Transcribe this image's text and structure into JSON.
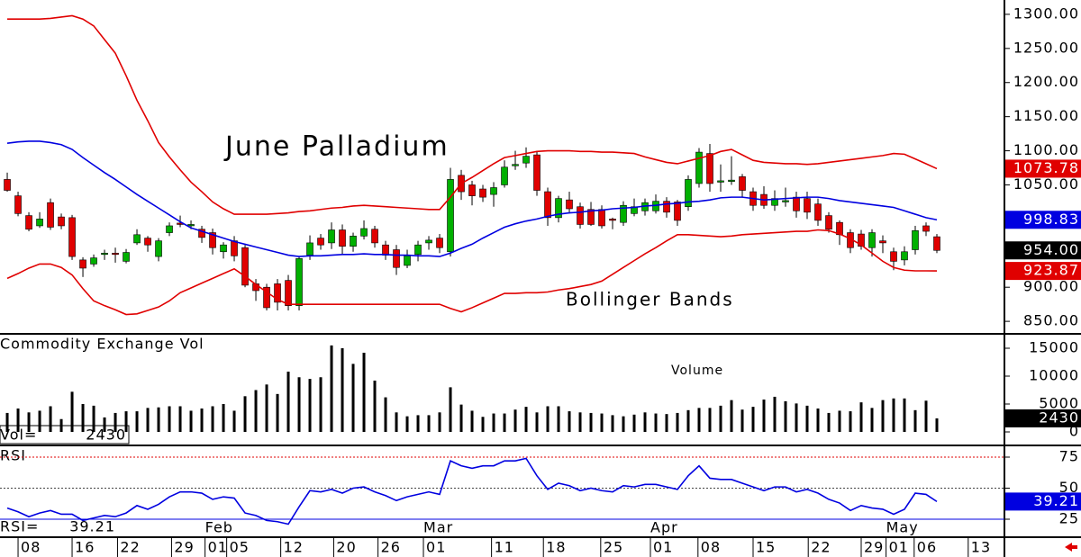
{
  "chart_data": [
    {
      "type": "candlestick",
      "title": "June Palladium",
      "annotation": "Bollinger Bands",
      "ylim": [
        833,
        1321
      ],
      "yticks": [
        {
          "value": 1300,
          "label": "1300.00"
        },
        {
          "value": 1250,
          "label": "1250.00"
        },
        {
          "value": 1200,
          "label": "1200.00"
        },
        {
          "value": 1150,
          "label": "1150.00"
        },
        {
          "value": 1100,
          "label": "1100.00"
        },
        {
          "value": 1050,
          "label": "1050.00"
        },
        {
          "value": 1000,
          "label": "1000.00"
        },
        {
          "value": 950,
          "label": "950.00"
        },
        {
          "value": 900,
          "label": "900.00"
        },
        {
          "value": 850,
          "label": "850.00"
        }
      ],
      "up_color": "#00b000",
      "down_color": "#e00000",
      "x": [
        0,
        1,
        2,
        3,
        4,
        5,
        6,
        7,
        8,
        9,
        10,
        11,
        12,
        13,
        14,
        15,
        16,
        17,
        18,
        19,
        20,
        21,
        22,
        23,
        24,
        25,
        26,
        27,
        28,
        29,
        30,
        31,
        32,
        33,
        34,
        35,
        36,
        37,
        38,
        39,
        40,
        41,
        42,
        43,
        44,
        45,
        46,
        47,
        48,
        49,
        50,
        51,
        52,
        53,
        54,
        55,
        56,
        57,
        58,
        59,
        60,
        61,
        62,
        63,
        64,
        65,
        66,
        67,
        68,
        69,
        70,
        71,
        72,
        73,
        74,
        75,
        76,
        77,
        78,
        79,
        80,
        81,
        82,
        83,
        84,
        85,
        86
      ],
      "open": [
        1058,
        1034,
        1005,
        990,
        1024,
        1003,
        1002,
        940,
        934,
        948,
        950,
        938,
        965,
        972,
        945,
        980,
        994,
        990,
        985,
        980,
        952,
        968,
        958,
        905,
        900,
        905,
        910,
        873,
        947,
        972,
        965,
        984,
        960,
        975,
        985,
        962,
        955,
        932,
        948,
        965,
        972,
        952,
        1064,
        1050,
        1044,
        1036,
        1050,
        1078,
        1082,
        1094,
        1040,
        1002,
        1028,
        1018,
        1014,
        1014,
        1000,
        995,
        1008,
        1012,
        1012,
        1026,
        1025,
        1018,
        1052,
        1096,
        1054,
        1055,
        1062,
        1040,
        1036,
        1020,
        1025,
        1032,
        1030,
        1022,
        1005,
        995,
        980,
        978,
        958,
        968,
        952,
        940,
        955,
        990,
        974
      ],
      "high": [
        1068,
        1040,
        1010,
        1010,
        1030,
        1008,
        1006,
        944,
        948,
        955,
        958,
        956,
        985,
        975,
        972,
        995,
        1005,
        998,
        990,
        986,
        966,
        975,
        962,
        912,
        905,
        912,
        918,
        945,
        976,
        978,
        995,
        992,
        980,
        998,
        990,
        968,
        962,
        955,
        968,
        975,
        978,
        1075,
        1072,
        1056,
        1050,
        1054,
        1086,
        1100,
        1105,
        1100,
        1046,
        1034,
        1040,
        1024,
        1025,
        1020,
        1002,
        1026,
        1030,
        1030,
        1036,
        1032,
        1028,
        1064,
        1104,
        1110,
        1080,
        1092,
        1066,
        1046,
        1048,
        1042,
        1046,
        1040,
        1040,
        1030,
        1010,
        998,
        985,
        984,
        985,
        976,
        958,
        960,
        990,
        995,
        978
      ],
      "low": [
        1040,
        1004,
        982,
        987,
        984,
        985,
        940,
        915,
        930,
        940,
        936,
        935,
        962,
        952,
        938,
        975,
        988,
        985,
        965,
        948,
        942,
        938,
        900,
        880,
        866,
        866,
        866,
        866,
        940,
        955,
        956,
        948,
        952,
        970,
        958,
        940,
        918,
        928,
        938,
        955,
        950,
        945,
        1028,
        1020,
        1025,
        1018,
        1046,
        1072,
        1075,
        1034,
        990,
        995,
        1008,
        986,
        990,
        986,
        985,
        990,
        1004,
        1005,
        1008,
        1002,
        990,
        1012,
        1046,
        1040,
        1040,
        1050,
        1032,
        1012,
        1015,
        1012,
        1018,
        1002,
        1000,
        990,
        980,
        962,
        950,
        955,
        945,
        950,
        925,
        932,
        948,
        975,
        950
      ],
      "close": [
        1042,
        1008,
        985,
        1000,
        988,
        990,
        945,
        928,
        943,
        950,
        948,
        951,
        977,
        962,
        968,
        990,
        992,
        992,
        973,
        958,
        962,
        946,
        903,
        895,
        870,
        878,
        873,
        942,
        965,
        962,
        984,
        960,
        975,
        986,
        965,
        947,
        929,
        946,
        962,
        969,
        958,
        1058,
        1040,
        1034,
        1032,
        1046,
        1076,
        1080,
        1092,
        1042,
        1002,
        1030,
        1015,
        992,
        992,
        990,
        998,
        1020,
        1018,
        1024,
        1026,
        1010,
        998,
        1058,
        1098,
        1052,
        1056,
        1057,
        1042,
        1020,
        1020,
        1030,
        1027,
        1012,
        1010,
        998,
        985,
        977,
        958,
        960,
        980,
        965,
        938,
        952,
        983,
        982,
        954
      ],
      "series": [
        {
          "color": "#e00000",
          "values": [
            1293,
            1293,
            1293,
            1293,
            1294,
            1296,
            1298,
            1293,
            1283,
            1263,
            1243,
            1210,
            1174,
            1144,
            1112,
            1091,
            1072,
            1054,
            1040,
            1025,
            1015,
            1007,
            1007,
            1007,
            1007,
            1008,
            1009,
            1011,
            1012,
            1014,
            1016,
            1017,
            1019,
            1020,
            1019,
            1018,
            1017,
            1016,
            1015,
            1014,
            1014,
            1032,
            1052,
            1061,
            1071,
            1081,
            1090,
            1093,
            1096,
            1099,
            1100,
            1100,
            1100,
            1099,
            1099,
            1098,
            1098,
            1097,
            1096,
            1091,
            1087,
            1083,
            1081,
            1085,
            1089,
            1093,
            1099,
            1102,
            1094,
            1086,
            1083,
            1082,
            1081,
            1081,
            1080,
            1081,
            1083,
            1085,
            1087,
            1089,
            1091,
            1093,
            1096,
            1095,
            1088,
            1081,
            1073.78
          ]
        },
        {
          "color": "#0000e0",
          "values": [
            1111,
            1113,
            1114,
            1114,
            1112,
            1109,
            1102,
            1090,
            1079,
            1068,
            1058,
            1047,
            1036,
            1026,
            1016,
            1006,
            996,
            987,
            982,
            977,
            972,
            967,
            963,
            959,
            955,
            951,
            947,
            945,
            946,
            946,
            947,
            948,
            948,
            949,
            948,
            948,
            947,
            947,
            946,
            946,
            945,
            950,
            957,
            963,
            972,
            980,
            988,
            993,
            997,
            1000,
            1004,
            1007,
            1009,
            1010,
            1012,
            1013,
            1015,
            1016,
            1017,
            1019,
            1020,
            1022,
            1023,
            1025,
            1026,
            1028,
            1031,
            1032,
            1032,
            1030,
            1028,
            1029,
            1030,
            1031,
            1032,
            1032,
            1030,
            1027,
            1025,
            1023,
            1021,
            1019,
            1017,
            1012,
            1007,
            1002,
            998.83
          ]
        },
        {
          "color": "#e00000",
          "values": [
            913,
            920,
            928,
            934,
            934,
            929,
            918,
            898,
            880,
            873,
            867,
            860,
            861,
            866,
            871,
            880,
            892,
            899,
            906,
            913,
            920,
            927,
            916,
            904,
            893,
            882,
            875,
            875,
            875,
            875,
            875,
            875,
            875,
            875,
            875,
            875,
            875,
            875,
            875,
            875,
            875,
            869,
            864,
            870,
            877,
            884,
            891,
            891,
            892,
            892,
            893,
            896,
            898,
            901,
            904,
            909,
            919,
            929,
            939,
            949,
            958,
            968,
            977,
            977,
            976,
            975,
            974,
            975,
            977,
            978,
            979,
            980,
            981,
            982,
            982,
            984,
            983,
            978,
            971,
            962,
            950,
            938,
            929,
            925,
            924,
            924,
            923.87
          ]
        }
      ],
      "tags": [
        {
          "value": 1073.78,
          "label": "1073.78",
          "color": "#e00000"
        },
        {
          "value": 998.83,
          "label": "998.83",
          "color": "#0000e0"
        },
        {
          "value": 954,
          "label": "954.00",
          "color": "#000000"
        },
        {
          "value": 923.87,
          "label": "923.87",
          "color": "#e00000"
        }
      ]
    },
    {
      "type": "bar",
      "title": "Commodity Exchange Vol",
      "annotation": "Volume",
      "color": "#000000",
      "ylim": [
        -2258,
        17420
      ],
      "yticks": [
        15000,
        10000,
        5000,
        0
      ],
      "values": [
        3400,
        4200,
        3500,
        3800,
        4600,
        2300,
        7200,
        5000,
        4700,
        2600,
        3400,
        3700,
        3700,
        4300,
        4400,
        4600,
        4600,
        3800,
        4200,
        4600,
        5000,
        3800,
        6400,
        7500,
        8500,
        6800,
        10800,
        9800,
        9500,
        9800,
        15500,
        15000,
        12200,
        14200,
        9200,
        6200,
        3500,
        2800,
        3000,
        3000,
        3500,
        8000,
        4900,
        3800,
        2700,
        3300,
        3300,
        4000,
        4500,
        3500,
        4600,
        4600,
        3700,
        3500,
        3400,
        3300,
        3000,
        2800,
        3100,
        3500,
        3300,
        3200,
        3400,
        3900,
        4300,
        4300,
        4700,
        5700,
        4000,
        4500,
        5800,
        6300,
        5500,
        5100,
        4700,
        4200,
        3400,
        3800,
        3700,
        5300,
        4300,
        5700,
        6000,
        6000,
        3900,
        5600,
        2430
      ],
      "readout_label": "Vol=",
      "readout": 2430,
      "tags": [
        {
          "value": 2430,
          "label": "2430",
          "color": "#000000"
        }
      ]
    },
    {
      "type": "line",
      "title": "RSI",
      "color": "#0000e0",
      "ylim": [
        10.5,
        83.7
      ],
      "yticks": [
        75,
        50,
        25
      ],
      "grid_colors": [
        "#e00000",
        "#444444",
        "#0000e0"
      ],
      "grid_dashed": [
        true,
        true,
        false
      ],
      "values": [
        34,
        31,
        27,
        30,
        32,
        29,
        29,
        24,
        26,
        28,
        27,
        30,
        36,
        33,
        37,
        43,
        47,
        47,
        46,
        41,
        43,
        42,
        30,
        28,
        24,
        23,
        21,
        35,
        48,
        47,
        49,
        46,
        50,
        51,
        47,
        44,
        40,
        43,
        45,
        47,
        45,
        72,
        68,
        66,
        68,
        68,
        72,
        72,
        74,
        60,
        49,
        54,
        52,
        48,
        50,
        48,
        47,
        52,
        51,
        53,
        53,
        51,
        49,
        60,
        68,
        58,
        57,
        57,
        54,
        51,
        48,
        51,
        51,
        47,
        49,
        46,
        41,
        38,
        32,
        36,
        34,
        33,
        29,
        33,
        46,
        45,
        39.21
      ],
      "readout_label": "RSI=",
      "readout": 39.21,
      "tags": [
        {
          "value": 39.21,
          "label": "39.21",
          "color": "#0000e0"
        }
      ],
      "xlim": [
        -0.67,
        92.25
      ],
      "xticks": [
        {
          "value": 1.0,
          "label": "08"
        },
        {
          "value": 6.0,
          "label": "16"
        },
        {
          "value": 10.2,
          "label": "22"
        },
        {
          "value": 15.2,
          "label": "29"
        },
        {
          "value": 18.3,
          "label": "01"
        },
        {
          "value": 20.3,
          "label": "05"
        },
        {
          "value": 25.3,
          "label": "12"
        },
        {
          "value": 30.2,
          "label": "20"
        },
        {
          "value": 34.3,
          "label": "26"
        },
        {
          "value": 38.5,
          "label": "01"
        },
        {
          "value": 44.8,
          "label": "11"
        },
        {
          "value": 49.6,
          "label": "18"
        },
        {
          "value": 54.9,
          "label": "25"
        },
        {
          "value": 59.5,
          "label": "01"
        },
        {
          "value": 63.9,
          "label": "08"
        },
        {
          "value": 69.0,
          "label": "15"
        },
        {
          "value": 74.1,
          "label": "22"
        },
        {
          "value": 79.0,
          "label": "29"
        },
        {
          "value": 81.3,
          "label": "01"
        },
        {
          "value": 83.9,
          "label": "06"
        },
        {
          "value": 88.9,
          "label": "13"
        }
      ],
      "month_labels": [
        {
          "value": 18.3,
          "label": "Feb"
        },
        {
          "value": 38.5,
          "label": "Mar"
        },
        {
          "value": 59.5,
          "label": "Apr"
        },
        {
          "value": 81.3,
          "label": "May"
        }
      ]
    }
  ]
}
